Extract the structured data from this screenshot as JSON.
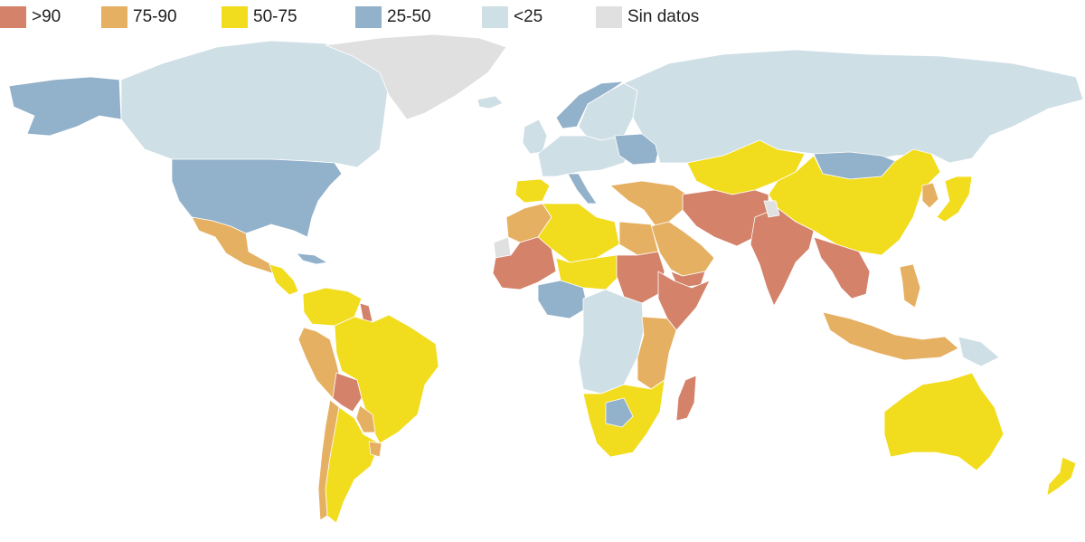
{
  "legend": {
    "items": [
      {
        "key": "gt90",
        "label": ">90",
        "color": "#d4826a"
      },
      {
        "key": "75-90",
        "label": "75-90",
        "color": "#e5b062"
      },
      {
        "key": "50-75",
        "label": "50-75",
        "color": "#f2dc1e"
      },
      {
        "key": "25-50",
        "label": "25-50",
        "color": "#92b1ca"
      },
      {
        "key": "lt25",
        "label": "<25",
        "color": "#cfdfe6"
      },
      {
        "key": "nodata",
        "label": "Sin datos",
        "color": "#e0e0e0"
      }
    ]
  },
  "map": {
    "regions": [
      {
        "name": "alaska",
        "class": "25-50"
      },
      {
        "name": "canada",
        "class": "lt25"
      },
      {
        "name": "greenland",
        "class": "nodata"
      },
      {
        "name": "iceland",
        "class": "lt25"
      },
      {
        "name": "usa",
        "class": "25-50"
      },
      {
        "name": "mexico",
        "class": "75-90"
      },
      {
        "name": "central-america",
        "class": "50-75"
      },
      {
        "name": "cuba",
        "class": "25-50"
      },
      {
        "name": "colombia-venezuela",
        "class": "50-75"
      },
      {
        "name": "guyana",
        "class": "gt90"
      },
      {
        "name": "peru",
        "class": "75-90"
      },
      {
        "name": "brazil",
        "class": "50-75"
      },
      {
        "name": "bolivia",
        "class": "gt90"
      },
      {
        "name": "paraguay",
        "class": "75-90"
      },
      {
        "name": "argentina",
        "class": "50-75"
      },
      {
        "name": "chile",
        "class": "75-90"
      },
      {
        "name": "uruguay",
        "class": "75-90"
      },
      {
        "name": "norway",
        "class": "25-50"
      },
      {
        "name": "sweden-finland",
        "class": "lt25"
      },
      {
        "name": "uk-ireland",
        "class": "lt25"
      },
      {
        "name": "western-europe",
        "class": "lt25"
      },
      {
        "name": "spain-portugal",
        "class": "50-75"
      },
      {
        "name": "italy",
        "class": "25-50"
      },
      {
        "name": "ukraine",
        "class": "25-50"
      },
      {
        "name": "russia",
        "class": "lt25"
      },
      {
        "name": "kazakhstan-central-asia",
        "class": "50-75"
      },
      {
        "name": "mongolia",
        "class": "25-50"
      },
      {
        "name": "china",
        "class": "50-75"
      },
      {
        "name": "korea",
        "class": "75-90"
      },
      {
        "name": "japan",
        "class": "50-75"
      },
      {
        "name": "turkey-middle-east",
        "class": "75-90"
      },
      {
        "name": "iran-pakistan-afghanistan",
        "class": "gt90"
      },
      {
        "name": "india",
        "class": "gt90"
      },
      {
        "name": "arabian-peninsula",
        "class": "75-90"
      },
      {
        "name": "yemen",
        "class": "gt90"
      },
      {
        "name": "southeast-asia",
        "class": "gt90"
      },
      {
        "name": "philippines",
        "class": "75-90"
      },
      {
        "name": "indonesia",
        "class": "75-90"
      },
      {
        "name": "papua",
        "class": "lt25"
      },
      {
        "name": "north-africa-west",
        "class": "75-90"
      },
      {
        "name": "algeria-libya",
        "class": "50-75"
      },
      {
        "name": "egypt",
        "class": "75-90"
      },
      {
        "name": "west-africa-sahel",
        "class": "gt90"
      },
      {
        "name": "niger-chad",
        "class": "50-75"
      },
      {
        "name": "sudan",
        "class": "gt90"
      },
      {
        "name": "horn-of-africa",
        "class": "gt90"
      },
      {
        "name": "nigeria",
        "class": "25-50"
      },
      {
        "name": "central-africa",
        "class": "lt25"
      },
      {
        "name": "east-africa",
        "class": "75-90"
      },
      {
        "name": "southern-africa",
        "class": "50-75"
      },
      {
        "name": "botswana",
        "class": "25-50"
      },
      {
        "name": "madagascar",
        "class": "gt90"
      },
      {
        "name": "australia",
        "class": "50-75"
      },
      {
        "name": "new-zealand",
        "class": "50-75"
      },
      {
        "name": "western-sahara",
        "class": "nodata"
      },
      {
        "name": "kashmir",
        "class": "nodata"
      }
    ]
  }
}
